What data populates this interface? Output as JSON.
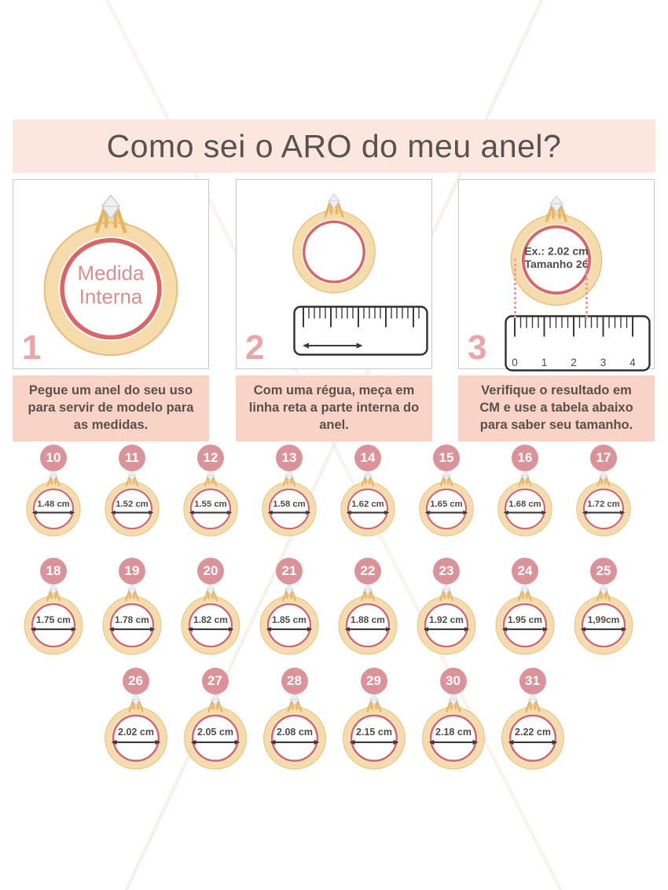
{
  "page": {
    "title": "Como sei o ARO do meu anel?"
  },
  "colors": {
    "header_bg": "#fce7de",
    "caption_bg": "#f9d3c5",
    "badge_bg": "#db9298",
    "step_number": "#eca4a9",
    "ring_gold": "#f5dcaa",
    "ring_gold_edge": "#e9bd7d",
    "ring_gold_dark": "#e6b560",
    "ring_red": "#dc6467",
    "rose_text": "#d98e92",
    "dark_text": "#585250",
    "measure_text": "#4f4b49",
    "ruler_ink": "#3a3a3a",
    "dotted_line": "#ec9ba1"
  },
  "steps": [
    {
      "number": "1",
      "caption": "Pegue um anel do seu uso para servir de modelo para as medidas.",
      "ring_label_lines": [
        "Medida",
        "Interna"
      ]
    },
    {
      "number": "2",
      "caption": "Com uma régua, meça em linha reta a parte interna do anel."
    },
    {
      "number": "3",
      "caption": "Verifique o resultado em CM e use a tabela abaixo para saber seu tamanho.",
      "ring_label_lines": [
        "Ex.: 2.02 cm",
        "Tamanho 26"
      ],
      "ruler_numbers": [
        "0",
        "1",
        "2",
        "3",
        "4"
      ]
    }
  ],
  "size_rows": [
    {
      "items": [
        {
          "size": "10",
          "measure": "1.48 cm"
        },
        {
          "size": "11",
          "measure": "1.52 cm"
        },
        {
          "size": "12",
          "measure": "1.55 cm"
        },
        {
          "size": "13",
          "measure": "1.58 cm"
        },
        {
          "size": "14",
          "measure": "1.62 cm"
        },
        {
          "size": "15",
          "measure": "1.65 cm"
        },
        {
          "size": "16",
          "measure": "1.68 cm"
        },
        {
          "size": "17",
          "measure": "1.72 cm"
        }
      ]
    },
    {
      "items": [
        {
          "size": "18",
          "measure": "1.75 cm"
        },
        {
          "size": "19",
          "measure": "1.78 cm"
        },
        {
          "size": "20",
          "measure": "1.82 cm"
        },
        {
          "size": "21",
          "measure": "1.85 cm"
        },
        {
          "size": "22",
          "measure": "1.88 cm"
        },
        {
          "size": "23",
          "measure": "1.92 cm"
        },
        {
          "size": "24",
          "measure": "1.95 cm"
        },
        {
          "size": "25",
          "measure": "1,99cm"
        }
      ]
    },
    {
      "items": [
        {
          "size": "26",
          "measure": "2.02 cm"
        },
        {
          "size": "27",
          "measure": "2.05 cm"
        },
        {
          "size": "28",
          "measure": "2.08 cm"
        },
        {
          "size": "29",
          "measure": "2.15 cm"
        },
        {
          "size": "30",
          "measure": "2.18 cm"
        },
        {
          "size": "31",
          "measure": "2.22 cm"
        }
      ]
    }
  ]
}
